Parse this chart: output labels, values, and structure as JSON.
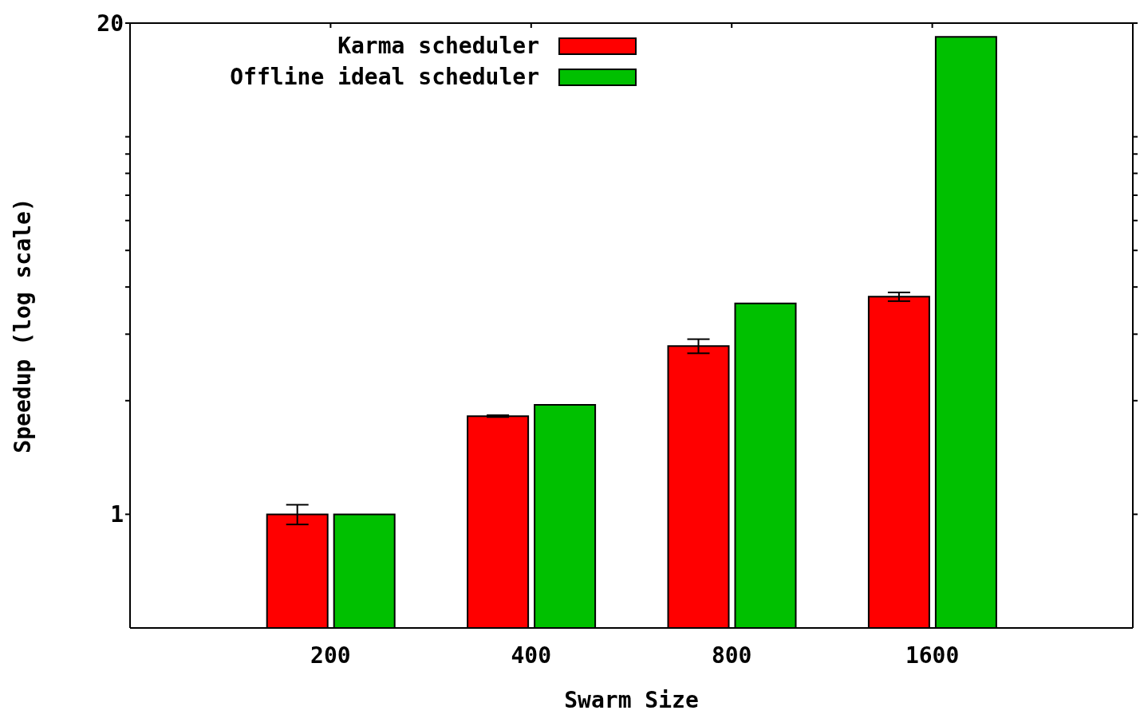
{
  "chart_data": {
    "type": "bar",
    "xlabel": "Swarm Size",
    "ylabel": "Speedup (log scale)",
    "categories": [
      "200",
      "400",
      "800",
      "1600"
    ],
    "series": [
      {
        "name": "Karma scheduler",
        "color": "#ff0000",
        "values": [
          1.0,
          1.82,
          2.79,
          3.77
        ],
        "errors": [
          0.06,
          0.01,
          0.12,
          0.1
        ]
      },
      {
        "name": "Offline ideal scheduler",
        "color": "#00c000",
        "values": [
          1.0,
          1.95,
          3.62,
          18.4
        ]
      }
    ],
    "log": "y",
    "ylim": [
      0.5,
      20
    ],
    "yticks": [
      1,
      {
        "value": 2,
        "label": null
      },
      {
        "value": 3,
        "label": null
      },
      {
        "value": 4,
        "label": null
      },
      {
        "value": 5,
        "label": null
      },
      {
        "value": 6,
        "label": null
      },
      {
        "value": 7,
        "label": null
      },
      {
        "value": 8,
        "label": null
      },
      {
        "value": 9,
        "label": null
      },
      {
        "value": 10,
        "label": null
      },
      20
    ],
    "grid": false,
    "legend": "top left"
  }
}
